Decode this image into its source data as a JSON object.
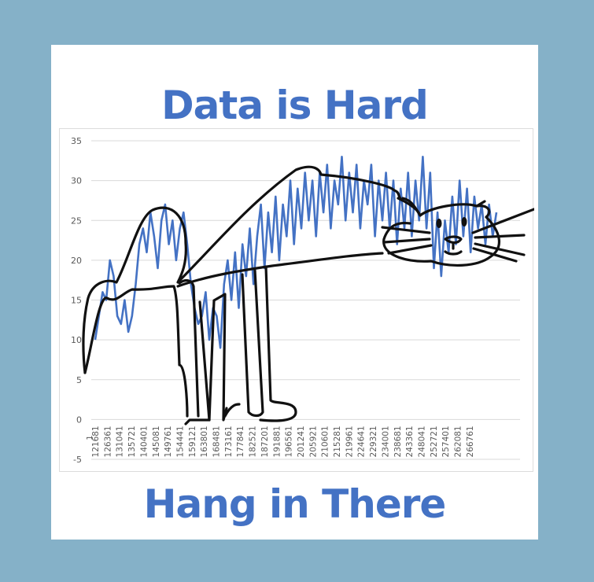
{
  "title": "Data is Hard",
  "subtitle": "Hang in There",
  "colors": {
    "frame": "#85b1c8",
    "series": "#4472c4",
    "grid": "#d9d9d9",
    "outline": "#111111",
    "tick_text": "#595959"
  },
  "chart_data": {
    "type": "line",
    "title": "",
    "xlabel": "",
    "ylabel": "",
    "ylim": [
      -5,
      35
    ],
    "yticks": [
      "35",
      "30",
      "25",
      "20",
      "15",
      "10",
      "5",
      "0",
      "-5"
    ],
    "grid": true,
    "x_tick_labels": [
      "121681",
      "126361",
      "131041",
      "135721",
      "140401",
      "145081",
      "149761",
      "154441",
      "159121",
      "163801",
      "168481",
      "173161",
      "177841",
      "182521",
      "187201",
      "191881",
      "196561",
      "201241",
      "205921",
      "210601",
      "215281",
      "219961",
      "224641",
      "229321",
      "234001",
      "238681",
      "243361",
      "248041",
      "252721",
      "257401",
      "262081",
      "266761"
    ],
    "x_label_first_partial": "1",
    "series": [
      {
        "values": [
          10,
          13,
          16,
          15,
          20,
          18,
          13,
          12,
          15,
          11,
          13,
          17,
          22,
          24,
          21,
          26,
          23,
          19,
          25,
          27,
          22,
          25,
          20,
          24,
          26,
          22,
          17,
          14,
          12,
          13,
          16,
          10,
          14,
          13,
          9,
          17,
          20,
          15,
          21,
          14,
          22,
          18,
          24,
          17,
          23,
          27,
          19,
          26,
          21,
          28,
          20,
          27,
          23,
          30,
          22,
          29,
          24,
          31,
          25,
          30,
          23,
          31,
          26,
          32,
          24,
          30,
          27,
          33,
          25,
          31,
          26,
          32,
          24,
          30,
          27,
          32,
          23,
          30,
          25,
          31,
          24,
          30,
          22,
          29,
          24,
          31,
          23,
          30,
          25,
          33,
          24,
          31,
          19,
          26,
          18,
          25,
          21,
          28,
          22,
          30,
          23,
          29,
          21,
          28,
          24,
          27,
          22,
          27,
          23,
          26
        ]
      }
    ]
  }
}
